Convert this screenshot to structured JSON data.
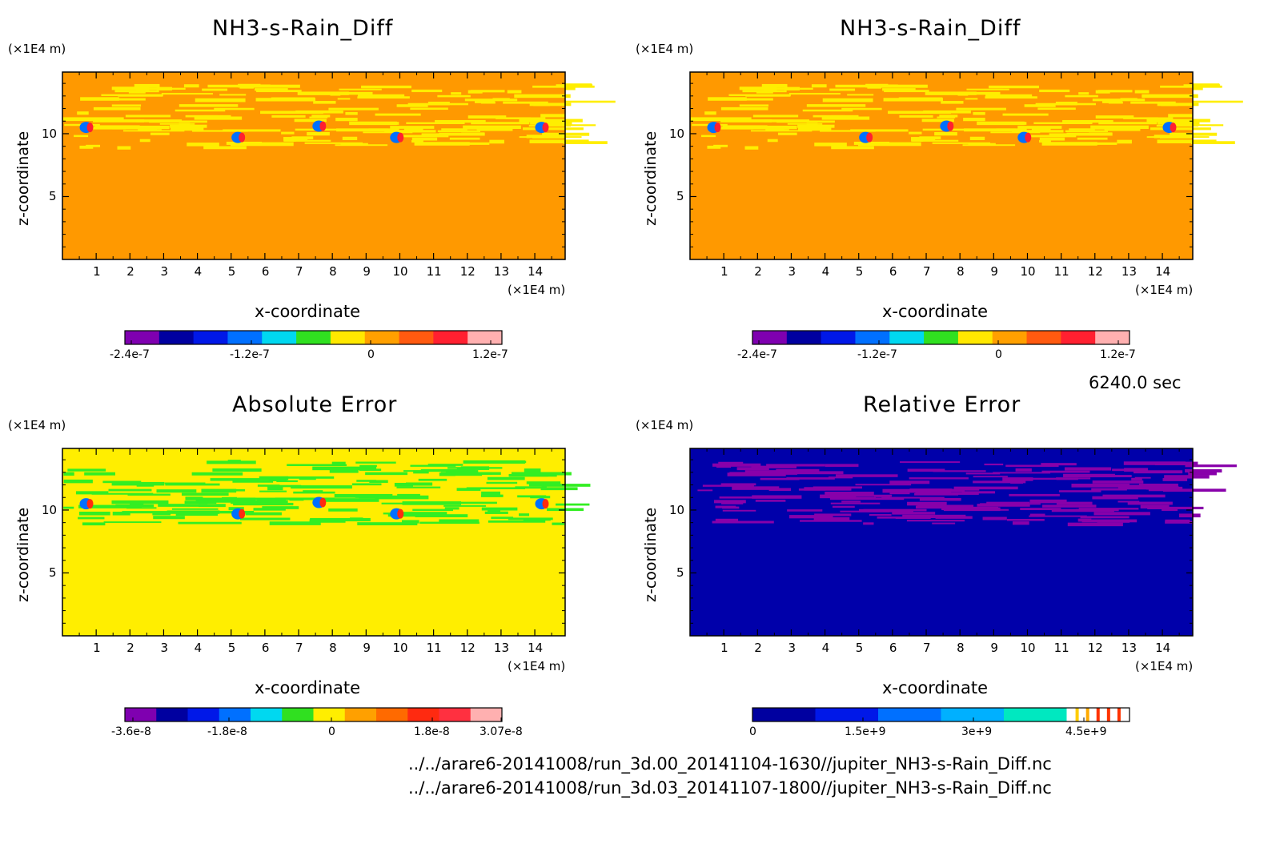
{
  "chart_data": [
    {
      "type": "heatmap",
      "title": "NH3-s-Rain_Diff",
      "xlabel": "x-coordinate",
      "ylabel": "z-coordinate",
      "x_unit": "(×1E4 m)",
      "y_unit": "(×1E4 m)",
      "xlim": [
        0,
        14.9
      ],
      "ylim": [
        0,
        14.9
      ],
      "x_ticks": [
        "1",
        "2",
        "3",
        "4",
        "5",
        "6",
        "7",
        "8",
        "9",
        "10",
        "11",
        "12",
        "13",
        "14"
      ],
      "y_ticks": [
        "5",
        "10"
      ],
      "colorbar_labels": [
        "-2.4e-7",
        "-1.2e-7",
        "0",
        "1.2e-7"
      ],
      "colorbar_colors": [
        "#7f00b0",
        "#0000a0",
        "#0018e8",
        "#0070ff",
        "#00d8f0",
        "#30e020",
        "#ffe800",
        "#ffa000",
        "#ff5a10",
        "#ff2030",
        "#ffb0b0"
      ],
      "background_color": "#ff9900",
      "feature_color": "#ffee00"
    },
    {
      "type": "heatmap",
      "title": "NH3-s-Rain_Diff",
      "xlabel": "x-coordinate",
      "ylabel": "z-coordinate",
      "x_unit": "(×1E4 m)",
      "y_unit": "(×1E4 m)",
      "xlim": [
        0,
        14.9
      ],
      "ylim": [
        0,
        14.9
      ],
      "x_ticks": [
        "1",
        "2",
        "3",
        "4",
        "5",
        "6",
        "7",
        "8",
        "9",
        "10",
        "11",
        "12",
        "13",
        "14"
      ],
      "y_ticks": [
        "5",
        "10"
      ],
      "colorbar_labels": [
        "-2.4e-7",
        "-1.2e-7",
        "0",
        "1.2e-7"
      ],
      "colorbar_colors": [
        "#7f00b0",
        "#0000a0",
        "#0018e8",
        "#0070ff",
        "#00d8f0",
        "#30e020",
        "#ffe800",
        "#ffa000",
        "#ff5a10",
        "#ff2030",
        "#ffb0b0"
      ],
      "background_color": "#ff9900",
      "feature_color": "#ffee00"
    },
    {
      "type": "heatmap",
      "title": "Absolute Error",
      "xlabel": "x-coordinate",
      "ylabel": "z-coordinate",
      "x_unit": "(×1E4 m)",
      "y_unit": "(×1E4 m)",
      "xlim": [
        0,
        14.9
      ],
      "ylim": [
        0,
        14.9
      ],
      "x_ticks": [
        "1",
        "2",
        "3",
        "4",
        "5",
        "6",
        "7",
        "8",
        "9",
        "10",
        "11",
        "12",
        "13",
        "14"
      ],
      "y_ticks": [
        "5",
        "10"
      ],
      "colorbar_labels": [
        "-3.6e-8",
        "-1.8e-8",
        "0",
        "1.8e-8",
        "3.07e-8"
      ],
      "colorbar_colors": [
        "#7f00b0",
        "#0000a0",
        "#0018e8",
        "#0070ff",
        "#00d8f0",
        "#30e020",
        "#ffee00",
        "#ffa000",
        "#ff6a00",
        "#ff2a10",
        "#ff3040",
        "#ffb0b0"
      ],
      "background_color": "#ffee00",
      "feature_color": "#33ee22"
    },
    {
      "type": "heatmap",
      "title": "Relative Error",
      "xlabel": "x-coordinate",
      "ylabel": "z-coordinate",
      "x_unit": "(×1E4 m)",
      "y_unit": "(×1E4 m)",
      "xlim": [
        0,
        14.9
      ],
      "ylim": [
        0,
        14.9
      ],
      "x_ticks": [
        "1",
        "2",
        "3",
        "4",
        "5",
        "6",
        "7",
        "8",
        "9",
        "10",
        "11",
        "12",
        "13",
        "14"
      ],
      "y_ticks": [
        "5",
        "10"
      ],
      "colorbar_labels": [
        "0",
        "1.5e+9",
        "3e+9",
        "4.5e+9"
      ],
      "colorbar_colors": [
        "#0000a0",
        "#0018e8",
        "#0070ff",
        "#00b0ff",
        "#00e8c0",
        "#ffffff"
      ],
      "colorbar_markers": [
        "#ffcc00",
        "#ffaa00",
        "#ff3300",
        "#ff3300",
        "#ff3300"
      ],
      "background_color": "#0000aa",
      "feature_color": "#8800aa"
    }
  ],
  "time_label": "6240.0 sec",
  "file_paths": [
    "../../arare6-20141008/run_3d.00_20141104-1630//jupiter_NH3-s-Rain_Diff.nc",
    "../../arare6-20141008/run_3d.03_20141107-1800//jupiter_NH3-s-Rain_Diff.nc"
  ]
}
